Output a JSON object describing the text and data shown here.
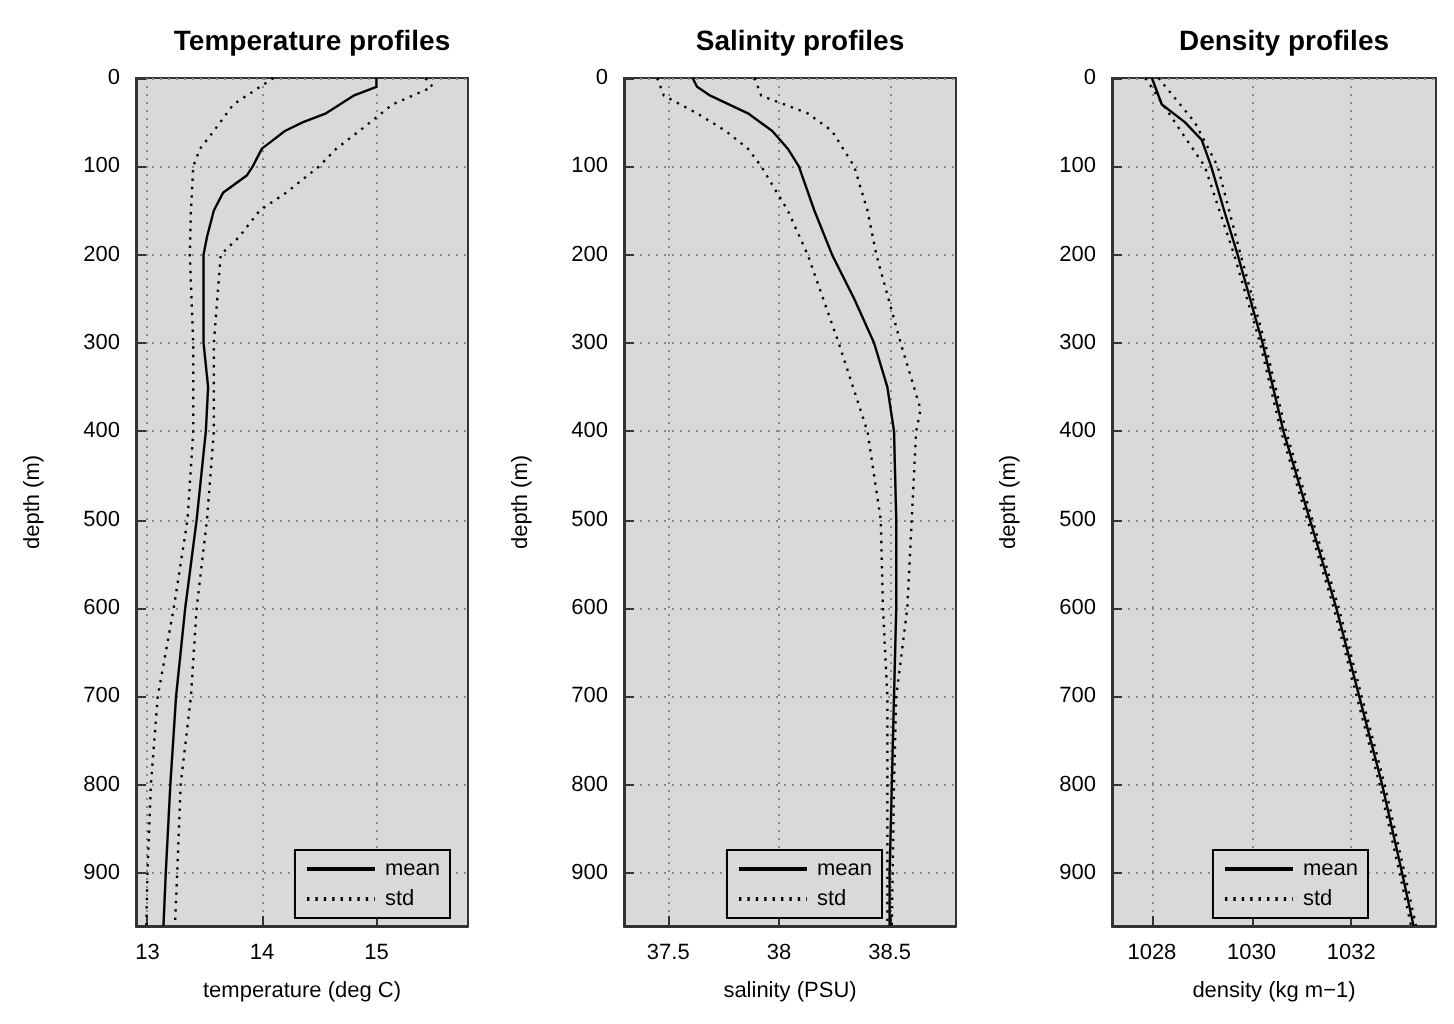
{
  "chart_data": [
    {
      "type": "line",
      "title": "Temperature profiles",
      "xlabel": "temperature (deg C)",
      "ylabel": "depth (m)",
      "xlim": [
        12.9,
        15.8
      ],
      "xticks": [
        13,
        14,
        15
      ],
      "ylim": [
        960,
        0
      ],
      "yticks": [
        0,
        100,
        200,
        300,
        400,
        500,
        600,
        700,
        800,
        900
      ],
      "grid": true,
      "legend": "bottom right",
      "marker": "none",
      "series": [
        {
          "name": "mean",
          "color": "#000000",
          "line_style": "solid",
          "x": [
            15.0,
            15.0,
            14.8,
            14.56,
            14.36,
            14.2,
            14.1,
            14.0,
            13.92,
            13.87,
            13.66,
            13.58,
            13.52,
            13.49,
            13.49,
            13.53,
            13.51,
            13.43,
            13.33,
            13.25,
            13.2,
            13.16,
            13.14
          ],
          "values": [
            0,
            10,
            20,
            40,
            50,
            60,
            70,
            80,
            100,
            110,
            130,
            150,
            180,
            200,
            300,
            350,
            400,
            500,
            600,
            700,
            800,
            900,
            960
          ]
        },
        {
          "name": "std",
          "color": "#000000",
          "line_style": "dotted",
          "x": [
            14.1,
            13.75,
            13.58,
            13.46,
            13.4,
            13.38,
            13.37,
            13.4,
            13.4,
            13.35,
            13.23,
            13.09,
            13.03,
            13.0,
            12.99
          ],
          "values": [
            0,
            30,
            60,
            80,
            100,
            150,
            200,
            300,
            400,
            500,
            600,
            700,
            800,
            900,
            960
          ]
        },
        {
          "color": "#000000",
          "line_style": "dotted",
          "x": [
            15.43,
            15.49,
            15.14,
            14.85,
            14.65,
            14.5,
            14.21,
            13.98,
            13.8,
            13.64,
            13.58,
            13.58,
            13.52,
            13.43,
            13.38,
            13.29,
            13.26,
            13.24
          ],
          "values": [
            0,
            10,
            30,
            60,
            80,
            100,
            130,
            150,
            180,
            200,
            300,
            400,
            500,
            600,
            700,
            800,
            900,
            960
          ]
        }
      ]
    },
    {
      "type": "line",
      "title": "Salinity profiles",
      "xlabel": "salinity (PSU)",
      "ylabel": "depth (m)",
      "xlim": [
        37.3,
        38.8
      ],
      "xticks": [
        37.5,
        38,
        38.5
      ],
      "ylim": [
        960,
        0
      ],
      "yticks": [
        0,
        100,
        200,
        300,
        400,
        500,
        600,
        700,
        800,
        900
      ],
      "grid": true,
      "legend": "bottom right",
      "marker": "none",
      "series": [
        {
          "name": "mean",
          "color": "#000000",
          "line_style": "solid",
          "x": [
            37.61,
            37.63,
            37.69,
            37.86,
            37.97,
            38.04,
            38.09,
            38.16,
            38.24,
            38.34,
            38.43,
            38.49,
            38.52,
            38.53,
            38.53,
            38.52,
            38.51,
            38.5,
            38.5
          ],
          "values": [
            0,
            10,
            20,
            40,
            60,
            80,
            100,
            150,
            200,
            250,
            300,
            350,
            400,
            500,
            600,
            700,
            800,
            900,
            960
          ]
        },
        {
          "name": "std",
          "color": "#000000",
          "line_style": "dotted",
          "x": [
            37.45,
            37.48,
            37.63,
            37.76,
            37.86,
            37.92,
            38.04,
            38.13,
            38.27,
            38.4,
            38.43,
            38.46,
            38.47,
            38.49,
            38.49,
            38.49,
            38.49
          ],
          "values": [
            0,
            20,
            40,
            60,
            80,
            100,
            150,
            200,
            300,
            400,
            450,
            500,
            600,
            700,
            800,
            900,
            960
          ]
        },
        {
          "color": "#000000",
          "line_style": "dotted",
          "x": [
            37.89,
            37.92,
            38.13,
            38.24,
            38.34,
            38.4,
            38.44,
            38.55,
            38.64,
            38.62,
            38.6,
            38.58,
            38.53,
            38.52,
            38.51
          ],
          "values": [
            0,
            20,
            40,
            60,
            100,
            150,
            200,
            300,
            375,
            400,
            500,
            600,
            700,
            800,
            960
          ]
        }
      ]
    },
    {
      "type": "line",
      "title": "Density profiles",
      "xlabel": "density (kg m−1)",
      "ylabel": "depth (m)",
      "xlim": [
        1027.2,
        1033.7
      ],
      "xticks": [
        1028,
        1030,
        1032
      ],
      "ylim": [
        960,
        0
      ],
      "yticks": [
        0,
        100,
        200,
        300,
        400,
        500,
        600,
        700,
        800,
        900
      ],
      "grid": true,
      "legend": "bottom right",
      "marker": "none",
      "series": [
        {
          "name": "mean",
          "color": "#000000",
          "line_style": "solid",
          "x": [
            1028.0,
            1028.2,
            1028.66,
            1029.0,
            1029.19,
            1029.45,
            1029.72,
            1030.22,
            1030.64,
            1031.17,
            1031.7,
            1032.16,
            1032.62,
            1033.02,
            1033.25
          ],
          "values": [
            0,
            30,
            50,
            70,
            100,
            150,
            200,
            300,
            400,
            500,
            600,
            700,
            800,
            900,
            960
          ]
        },
        {
          "name": "std",
          "color": "#000000",
          "line_style": "dotted",
          "x": [
            1027.87,
            1028.46,
            1029.06,
            1029.65,
            1030.17,
            1030.59,
            1031.12,
            1031.65,
            1032.11,
            1032.57,
            1032.97,
            1033.2
          ],
          "values": [
            0,
            50,
            100,
            200,
            300,
            400,
            500,
            600,
            700,
            800,
            900,
            960
          ]
        },
        {
          "color": "#000000",
          "line_style": "dotted",
          "x": [
            1028.13,
            1028.86,
            1029.32,
            1029.78,
            1030.27,
            1030.69,
            1031.22,
            1031.75,
            1032.21,
            1032.67,
            1033.07,
            1033.3
          ],
          "values": [
            0,
            50,
            100,
            200,
            300,
            400,
            500,
            600,
            700,
            800,
            900,
            960
          ]
        }
      ]
    }
  ]
}
